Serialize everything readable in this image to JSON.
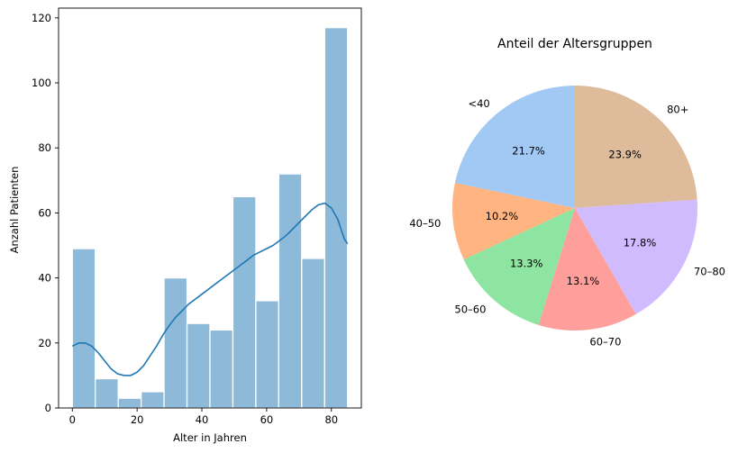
{
  "chart_data": [
    {
      "type": "bar",
      "subtype": "histogram-with-kde",
      "title": "",
      "xlabel": "Alter in Jahren",
      "ylabel": "Anzahl Patienten",
      "xlim": [
        -4.25,
        89.25
      ],
      "ylim": [
        0,
        123
      ],
      "xticks": [
        0,
        20,
        40,
        60,
        80
      ],
      "yticks": [
        0,
        20,
        40,
        60,
        80,
        100,
        120
      ],
      "bar_color": "#8ebad9",
      "bar_edge_color": "#ffffff",
      "bins": [
        {
          "x0": 0,
          "x1": 7.08,
          "value": 49
        },
        {
          "x0": 7.08,
          "x1": 14.17,
          "value": 9
        },
        {
          "x0": 14.17,
          "x1": 21.25,
          "value": 3
        },
        {
          "x0": 21.25,
          "x1": 28.33,
          "value": 5
        },
        {
          "x0": 28.33,
          "x1": 35.42,
          "value": 40
        },
        {
          "x0": 35.42,
          "x1": 42.5,
          "value": 26
        },
        {
          "x0": 42.5,
          "x1": 49.58,
          "value": 24
        },
        {
          "x0": 49.58,
          "x1": 56.67,
          "value": 65
        },
        {
          "x0": 56.67,
          "x1": 63.75,
          "value": 33
        },
        {
          "x0": 63.75,
          "x1": 70.83,
          "value": 72
        },
        {
          "x0": 70.83,
          "x1": 77.92,
          "value": 46
        },
        {
          "x0": 77.92,
          "x1": 85,
          "value": 117
        }
      ],
      "kde": {
        "color": "#1f77b4",
        "x": [
          0,
          2,
          4,
          6,
          8,
          10,
          12,
          14,
          16,
          18,
          20,
          22,
          24,
          26,
          28,
          30,
          32,
          34,
          36,
          38,
          40,
          42,
          44,
          46,
          48,
          50,
          52,
          54,
          56,
          58,
          60,
          62,
          64,
          66,
          68,
          70,
          72,
          74,
          76,
          78,
          80,
          82,
          84,
          85
        ],
        "y": [
          19,
          20,
          20,
          19,
          17,
          14.5,
          12,
          10.5,
          10,
          10,
          11,
          13,
          16,
          19,
          22.5,
          25.5,
          28,
          30,
          32,
          33.5,
          35,
          36.5,
          38,
          39.5,
          41,
          42.5,
          44,
          45.5,
          47,
          48,
          49,
          50,
          51.5,
          53,
          55,
          57,
          59,
          61,
          62.5,
          63,
          61.5,
          58,
          52,
          50.5
        ]
      }
    },
    {
      "type": "pie",
      "title": "Anteil der Altersgruppen",
      "start_angle_deg": 90,
      "direction": "clockwise",
      "slices": [
        {
          "label": "80+",
          "value": 23.9,
          "pct_label": "23.9%",
          "color": "#debb9b"
        },
        {
          "label": "70–80",
          "value": 17.8,
          "pct_label": "17.8%",
          "color": "#d0bbff"
        },
        {
          "label": "60–70",
          "value": 13.1,
          "pct_label": "13.1%",
          "color": "#ff9f9b"
        },
        {
          "label": "50–60",
          "value": 13.3,
          "pct_label": "13.3%",
          "color": "#8de5a1"
        },
        {
          "label": "40–50",
          "value": 10.2,
          "pct_label": "10.2%",
          "color": "#ffb482"
        },
        {
          "label": "<40",
          "value": 21.7,
          "pct_label": "21.7%",
          "color": "#a1c9f4"
        }
      ]
    }
  ]
}
